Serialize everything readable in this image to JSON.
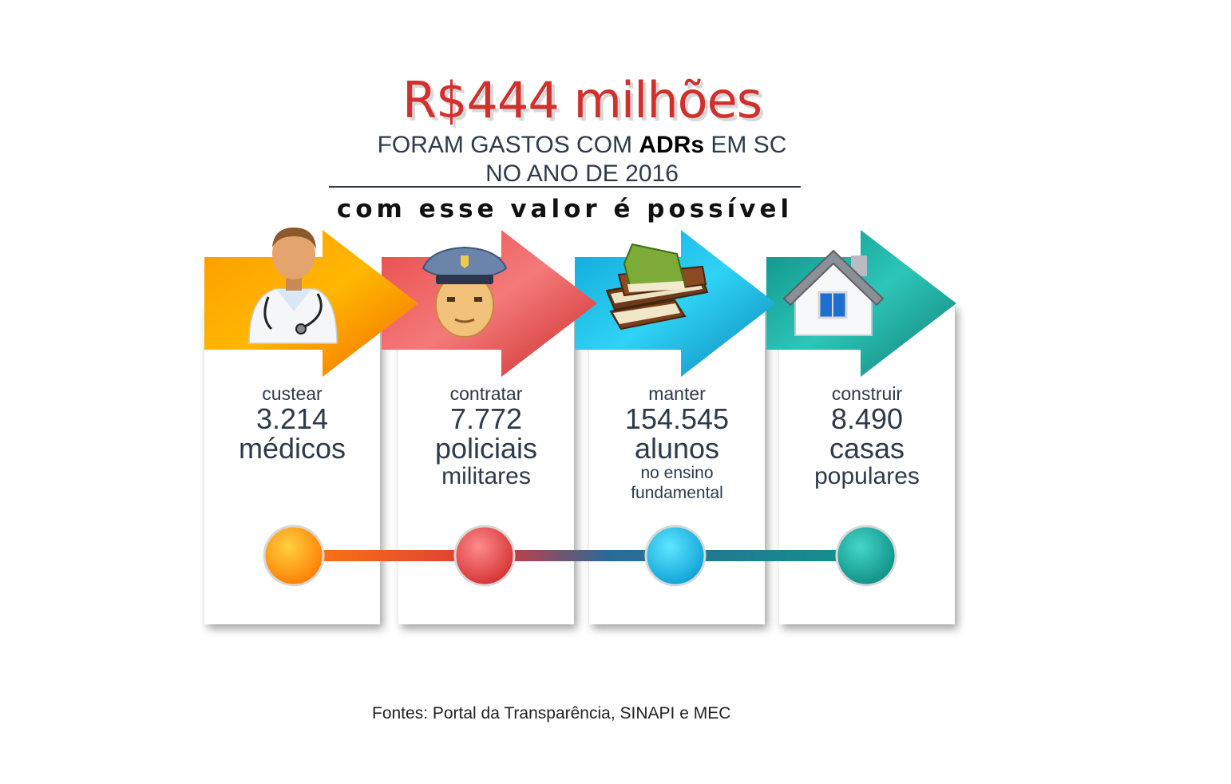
{
  "header": {
    "amount": "R$444 milhões",
    "line1_pre": "FORAM GASTOS COM ",
    "line1_bold": "ADRs",
    "line1_post": " EM SC",
    "line2": "NO ANO DE 2016",
    "subtitle": "com esse valor é possível"
  },
  "items": [
    {
      "verb": "custear",
      "number": "3.214",
      "line1": "médicos",
      "line2": "",
      "extra1": "",
      "extra2": "",
      "icon": "doctor-icon",
      "color": "#ff8c00"
    },
    {
      "verb": "contratar",
      "number": "7.772",
      "line1": "policiais",
      "line2": "militares",
      "extra1": "",
      "extra2": "",
      "icon": "police-officer-icon",
      "color": "#e0403a"
    },
    {
      "verb": "manter",
      "number": "154.545",
      "line1": "alunos",
      "line2": "",
      "extra1": "no ensino",
      "extra2": "fundamental",
      "icon": "books-icon",
      "color": "#14b3e0"
    },
    {
      "verb": "construir",
      "number": "8.490",
      "line1": "casas",
      "line2": "populares",
      "extra1": "",
      "extra2": "",
      "icon": "house-icon",
      "color": "#17a097"
    }
  ],
  "footer": {
    "source": "Fontes: Portal da Transparência, SINAPI e MEC"
  }
}
